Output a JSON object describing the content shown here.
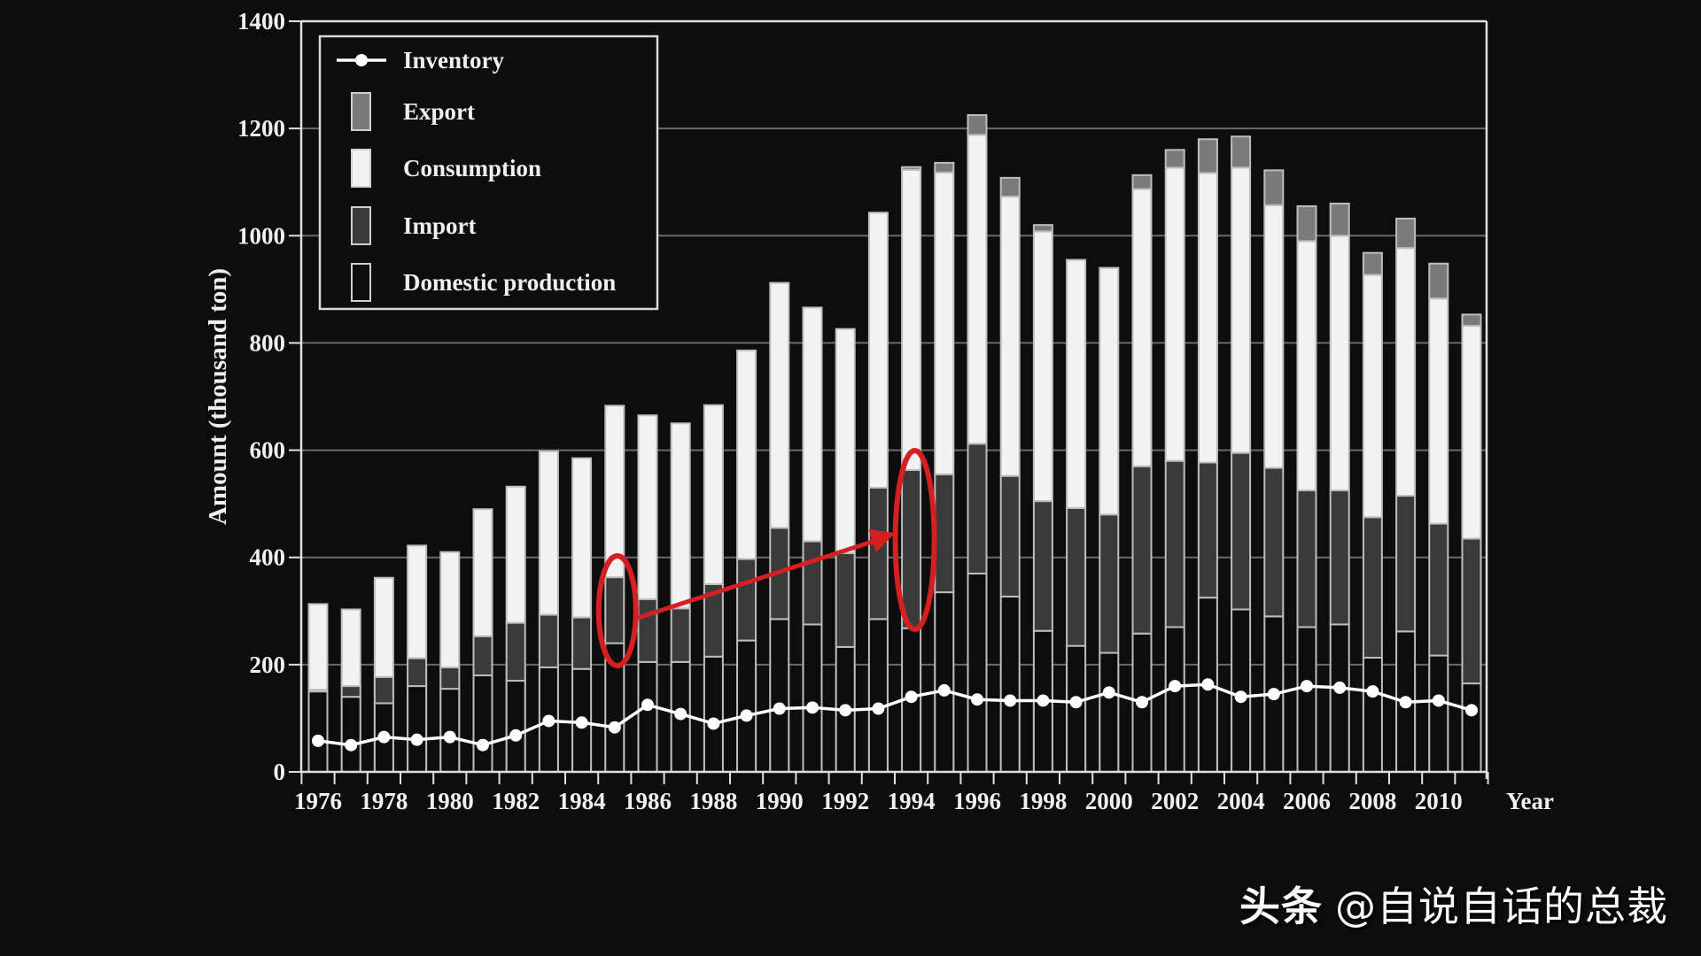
{
  "chart_data": {
    "type": "bar",
    "subtype": "stacked_bar_with_line",
    "title": "",
    "xlabel": "Year",
    "ylabel": "Amount (thousand ton)",
    "ylim": [
      0,
      1400
    ],
    "yticks": [
      0,
      200,
      400,
      600,
      800,
      1000,
      1200,
      1400
    ],
    "xtick_labels": [
      "1976",
      "1978",
      "1980",
      "1982",
      "1984",
      "1986",
      "1988",
      "1990",
      "1992",
      "1994",
      "1996",
      "1998",
      "2000",
      "2002",
      "2004",
      "2006",
      "2008",
      "2010"
    ],
    "grid": "horizontal",
    "legend_position": "upper-left",
    "legend": [
      "Inventory",
      "Export",
      "Consumption",
      "Import",
      "Domestic production"
    ],
    "categories": [
      1976,
      1977,
      1978,
      1979,
      1980,
      1981,
      1982,
      1983,
      1984,
      1985,
      1986,
      1987,
      1988,
      1989,
      1990,
      1991,
      1992,
      1993,
      1994,
      1995,
      1996,
      1997,
      1998,
      1999,
      2000,
      2001,
      2002,
      2003,
      2004,
      2005,
      2006,
      2007,
      2008,
      2009,
      2010,
      2011
    ],
    "series": [
      {
        "name": "Domestic production",
        "stack_order": 0,
        "color": "#0d0d0d",
        "values": [
          150,
          140,
          128,
          160,
          155,
          180,
          170,
          195,
          192,
          240,
          205,
          205,
          215,
          245,
          285,
          275,
          233,
          285,
          268,
          335,
          370,
          327,
          263,
          235,
          222,
          258,
          270,
          325,
          303,
          290,
          270,
          275,
          213,
          262,
          217,
          165
        ]
      },
      {
        "name": "Import",
        "stack_order": 1,
        "color": "#3a3a3a",
        "values": [
          3,
          20,
          49,
          52,
          40,
          73,
          108,
          98,
          96,
          123,
          117,
          100,
          135,
          152,
          170,
          155,
          175,
          245,
          295,
          220,
          242,
          225,
          242,
          257,
          258,
          312,
          310,
          252,
          292,
          277,
          255,
          250,
          262,
          253,
          246,
          270
        ]
      },
      {
        "name": "Consumption",
        "stack_order": 2,
        "color": "#f2f2f2",
        "values": [
          160,
          143,
          185,
          210,
          215,
          237,
          254,
          305,
          297,
          320,
          343,
          345,
          334,
          389,
          457,
          436,
          418,
          513,
          560,
          563,
          576,
          521,
          503,
          463,
          460,
          517,
          547,
          540,
          532,
          490,
          465,
          475,
          452,
          462,
          420,
          397
        ]
      },
      {
        "name": "Export",
        "stack_order": 3,
        "color": "#7a7a7a",
        "values": [
          0,
          0,
          0,
          0,
          0,
          0,
          0,
          0,
          0,
          0,
          0,
          0,
          0,
          0,
          0,
          0,
          0,
          0,
          5,
          18,
          37,
          35,
          12,
          0,
          0,
          26,
          33,
          63,
          58,
          65,
          65,
          60,
          41,
          55,
          65,
          21
        ]
      },
      {
        "name": "Inventory",
        "type": "line",
        "color": "#ffffff",
        "values": [
          58,
          50,
          65,
          60,
          65,
          50,
          68,
          95,
          92,
          83,
          125,
          108,
          90,
          105,
          118,
          120,
          115,
          118,
          140,
          152,
          135,
          133,
          133,
          130,
          148,
          130,
          160,
          163,
          140,
          145,
          160,
          157,
          150,
          130,
          133,
          115
        ]
      }
    ],
    "annotations": [
      {
        "type": "ellipse",
        "color": "#d42020",
        "target_year": 1985,
        "target_series": "Import"
      },
      {
        "type": "ellipse",
        "color": "#d42020",
        "target_year": 1994,
        "target_series": "Import"
      },
      {
        "type": "arrow",
        "color": "#d42020",
        "from_year": 1985,
        "to_year": 1994
      }
    ]
  },
  "watermark": {
    "brand": "头条",
    "handle": "@自说自话的总裁"
  }
}
